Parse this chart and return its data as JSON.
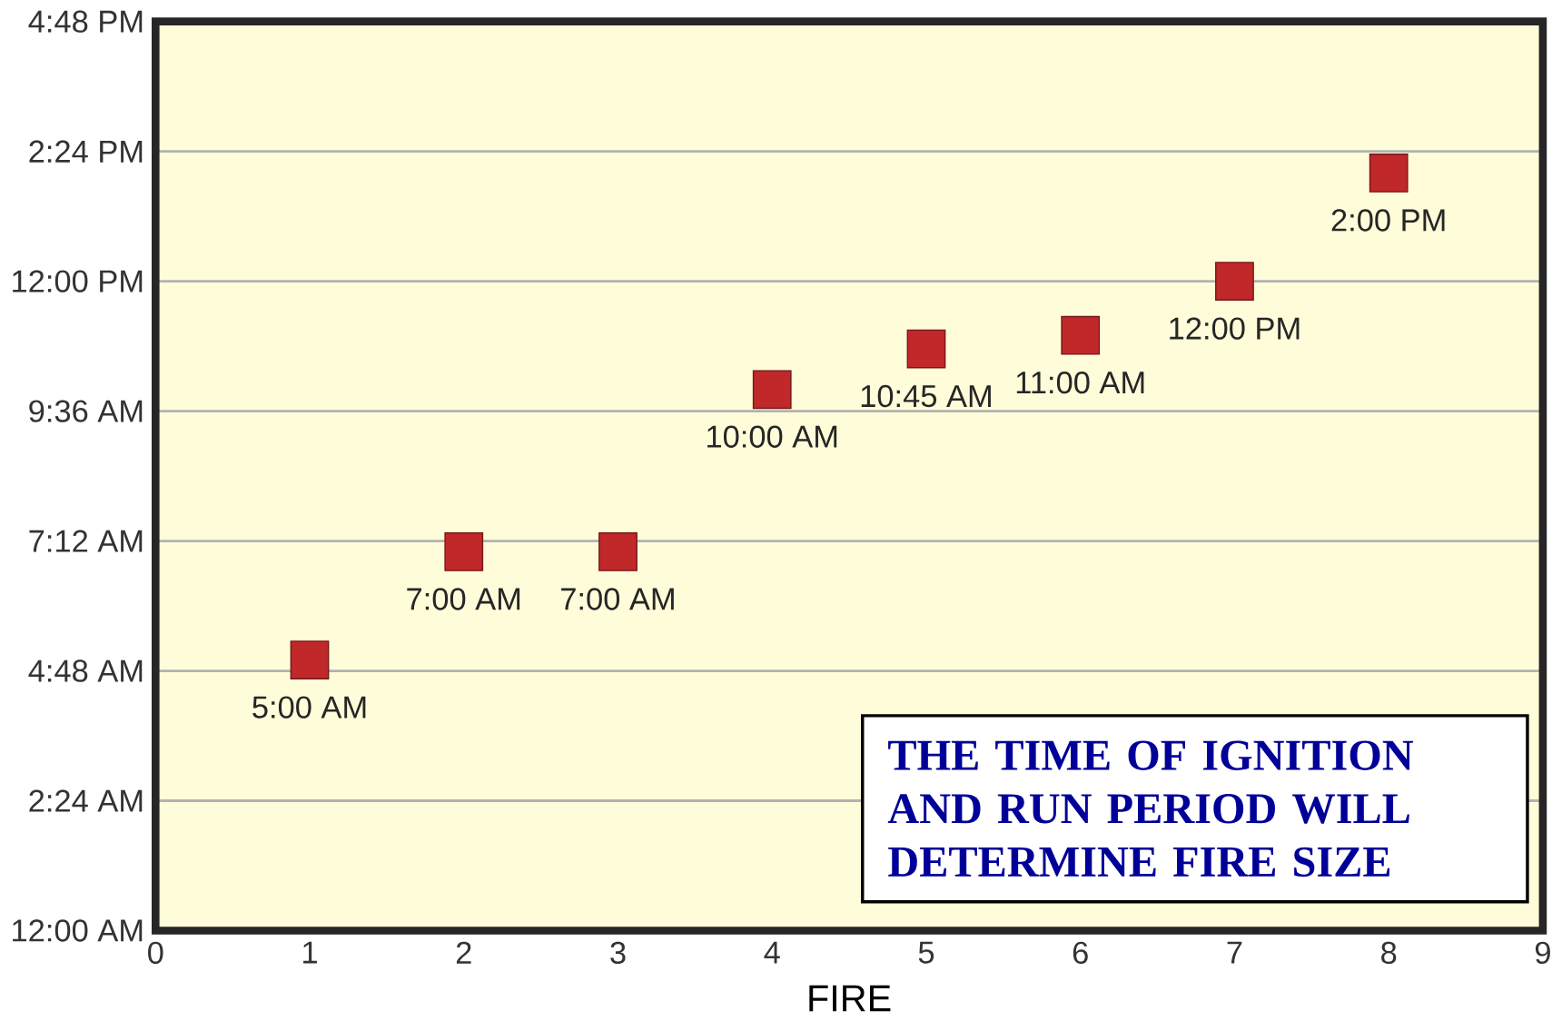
{
  "chart_data": {
    "type": "scatter",
    "xlabel": "FIRE",
    "x": [
      1,
      2,
      3,
      4,
      5,
      6,
      7,
      8
    ],
    "series": [
      {
        "color": "#c0282a",
        "values": [
          5,
          7,
          7,
          10,
          10.75,
          11,
          12,
          14
        ],
        "value_labels": [
          "5:00 AM",
          "7:00 AM",
          "7:00 AM",
          "10:00 AM",
          "10:45 AM",
          "11:00 AM",
          "12:00 PM",
          "2:00 PM"
        ]
      }
    ],
    "xlim": [
      0,
      9
    ],
    "xticks": [
      0,
      1,
      2,
      3,
      4,
      5,
      6,
      7,
      8,
      9
    ],
    "ylim": [
      0,
      16.8
    ],
    "yticks": [
      {
        "value": 0,
        "label": "12:00 AM"
      },
      {
        "value": 2.4,
        "label": "2:24 AM"
      },
      {
        "value": 4.8,
        "label": "4:48 AM"
      },
      {
        "value": 7.2,
        "label": "7:12 AM"
      },
      {
        "value": 9.6,
        "label": "9:36 AM"
      },
      {
        "value": 12,
        "label": "12:00 PM"
      },
      {
        "value": 14.4,
        "label": "2:24 PM"
      },
      {
        "value": 16.8,
        "label": "4:48 PM"
      }
    ],
    "grid": "y",
    "marker": "square",
    "annotations": [
      "THE TIME OF IGNITION AND RUN PERIOD WILL DETERMINE FIRE SIZE"
    ]
  }
}
